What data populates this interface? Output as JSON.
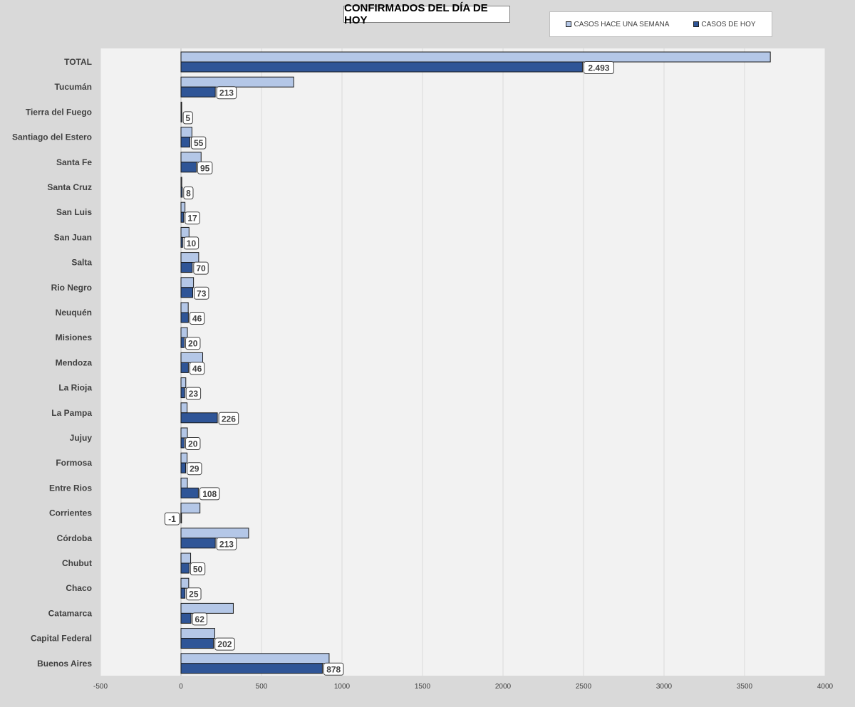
{
  "chart_data": {
    "type": "bar",
    "orientation": "horizontal",
    "title": "CONFIRMADOS DEL DÍA DE HOY",
    "xlim": [
      -500,
      4000
    ],
    "xticks": [
      -500,
      0,
      500,
      1000,
      1500,
      2000,
      2500,
      3000,
      3500,
      4000
    ],
    "grid": "vertical",
    "legend_position": "top-right",
    "categories": [
      "TOTAL",
      "Tucumán",
      "Tierra del Fuego",
      "Santiago del Estero",
      "Santa Fe",
      "Santa Cruz",
      "San Luis",
      "San Juan",
      "Salta",
      "Rio Negro",
      "Neuquén",
      "Misiones",
      "Mendoza",
      "La Rioja",
      "La Pampa",
      "Jujuy",
      "Formosa",
      "Entre Rios",
      "Corrientes",
      "Córdoba",
      "Chubut",
      "Chaco",
      "Catamarca",
      "Capital Federal",
      "Buenos Aires"
    ],
    "series": [
      {
        "name": "CASOS HACE UNA SEMANA",
        "color": "#b4c7e7",
        "values": [
          3660,
          700,
          3,
          68,
          125,
          5,
          25,
          50,
          110,
          78,
          45,
          40,
          135,
          30,
          38,
          40,
          38,
          40,
          118,
          420,
          60,
          48,
          325,
          210,
          920
        ]
      },
      {
        "name": "CASOS DE HOY",
        "color": "#2f5597",
        "values": [
          2493,
          213,
          5,
          55,
          95,
          8,
          17,
          10,
          70,
          73,
          46,
          20,
          46,
          23,
          226,
          20,
          29,
          108,
          -1,
          213,
          50,
          25,
          62,
          202,
          878
        ],
        "data_labels": [
          "2.493",
          "213",
          "5",
          "55",
          "95",
          "8",
          "17",
          "10",
          "70",
          "73",
          "46",
          "20",
          "46",
          "23",
          "226",
          "20",
          "29",
          "108",
          "-1",
          "213",
          "50",
          "25",
          "62",
          "202",
          "878"
        ]
      }
    ]
  }
}
